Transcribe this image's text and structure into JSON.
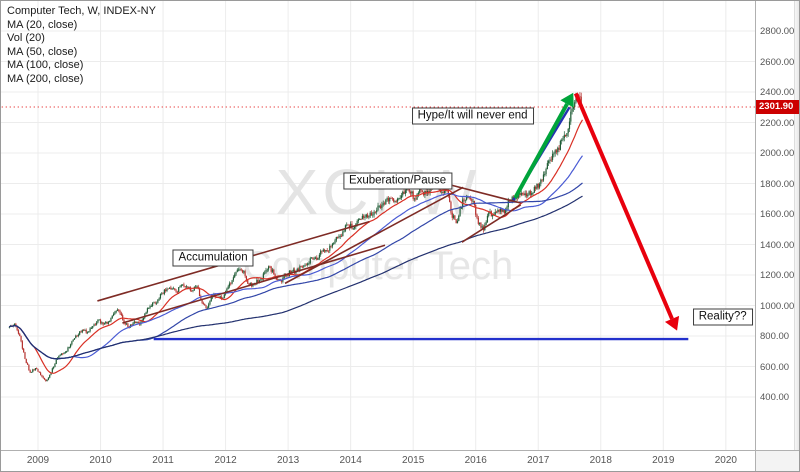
{
  "legend": {
    "items": [
      "Computer Tech, W, INDEX-NY",
      "MA (20, close)",
      "Vol (20)",
      "MA (50, close)",
      "MA (100, close)",
      "MA (200, close)"
    ]
  },
  "watermark": {
    "line1": "XCI W",
    "line2": "Computer Tech"
  },
  "annotations": [
    {
      "text": "Accumulation",
      "x": 2011.8,
      "price": 1310
    },
    {
      "text": "Exuberation/Pause",
      "x": 2014.75,
      "price": 1815
    },
    {
      "text": "Hype/It will never end",
      "x": 2015.95,
      "price": 2245
    },
    {
      "text": "Reality??",
      "x": 2019.95,
      "price": 925
    }
  ],
  "price_axis": {
    "labels": [
      {
        "value": 2800,
        "label": "2800.00"
      },
      {
        "value": 2600,
        "label": "2600.00"
      },
      {
        "value": 2400,
        "label": "2400.00"
      },
      {
        "value": 2200,
        "label": "2200.00"
      },
      {
        "value": 2000,
        "label": "2000.00"
      },
      {
        "value": 1800,
        "label": "1800.00"
      },
      {
        "value": 1600,
        "label": "1600.00"
      },
      {
        "value": 1400,
        "label": "1400.00"
      },
      {
        "value": 1200,
        "label": "1200.00"
      },
      {
        "value": 1000,
        "label": "1000.00"
      },
      {
        "value": 800,
        "label": "800.00"
      },
      {
        "value": 600,
        "label": "600.00"
      },
      {
        "value": 400,
        "label": "400.00"
      }
    ],
    "current": {
      "value": 2301.9,
      "label": "2301.90",
      "color": "#cc0000"
    }
  },
  "time_axis": {
    "labels": [
      {
        "value": 2009,
        "label": "2009"
      },
      {
        "value": 2010,
        "label": "2010"
      },
      {
        "value": 2011,
        "label": "2011"
      },
      {
        "value": 2012,
        "label": "2012"
      },
      {
        "value": 2013,
        "label": "2013"
      },
      {
        "value": 2014,
        "label": "2014"
      },
      {
        "value": 2015,
        "label": "2015"
      },
      {
        "value": 2016,
        "label": "2016"
      },
      {
        "value": 2017,
        "label": "2017"
      },
      {
        "value": 2018,
        "label": "2018"
      },
      {
        "value": 2019,
        "label": "2019"
      },
      {
        "value": 2020,
        "label": "2020"
      }
    ]
  },
  "chart_data": {
    "type": "candlestick",
    "title": "Computer Tech, W, INDEX-NY",
    "timeframe": "weekly",
    "x_range": [
      2008.45,
      2020.35
    ],
    "ylim": [
      400,
      2800
    ],
    "gridline_step": 200,
    "last_price": 2301.9,
    "candle_colors": {
      "up": "#1f5c35",
      "down": "#b5302d"
    },
    "monthly_closes": [
      [
        "2008-07",
        860
      ],
      [
        "2008-08",
        880
      ],
      [
        "2008-09",
        800
      ],
      [
        "2008-10",
        650
      ],
      [
        "2008-11",
        560
      ],
      [
        "2008-12",
        590
      ],
      [
        "2009-01",
        545
      ],
      [
        "2009-02",
        505
      ],
      [
        "2009-03",
        560
      ],
      [
        "2009-04",
        645
      ],
      [
        "2009-05",
        685
      ],
      [
        "2009-06",
        700
      ],
      [
        "2009-07",
        765
      ],
      [
        "2009-08",
        800
      ],
      [
        "2009-09",
        840
      ],
      [
        "2009-10",
        825
      ],
      [
        "2009-11",
        865
      ],
      [
        "2009-12",
        905
      ],
      [
        "2010-01",
        875
      ],
      [
        "2010-02",
        895
      ],
      [
        "2010-03",
        945
      ],
      [
        "2010-04",
        965
      ],
      [
        "2010-05",
        885
      ],
      [
        "2010-06",
        855
      ],
      [
        "2010-07",
        895
      ],
      [
        "2010-08",
        875
      ],
      [
        "2010-09",
        945
      ],
      [
        "2010-10",
        995
      ],
      [
        "2010-11",
        1015
      ],
      [
        "2010-12",
        1075
      ],
      [
        "2011-01",
        1095
      ],
      [
        "2011-02",
        1105
      ],
      [
        "2011-03",
        1090
      ],
      [
        "2011-04",
        1135
      ],
      [
        "2011-05",
        1125
      ],
      [
        "2011-06",
        1095
      ],
      [
        "2011-07",
        1125
      ],
      [
        "2011-08",
        1015
      ],
      [
        "2011-09",
        985
      ],
      [
        "2011-10",
        1065
      ],
      [
        "2011-11",
        1055
      ],
      [
        "2011-12",
        1050
      ],
      [
        "2012-01",
        1125
      ],
      [
        "2012-02",
        1185
      ],
      [
        "2012-03",
        1235
      ],
      [
        "2012-04",
        1225
      ],
      [
        "2012-05",
        1135
      ],
      [
        "2012-06",
        1145
      ],
      [
        "2012-07",
        1165
      ],
      [
        "2012-08",
        1215
      ],
      [
        "2012-09",
        1255
      ],
      [
        "2012-10",
        1185
      ],
      [
        "2012-11",
        1165
      ],
      [
        "2012-12",
        1195
      ],
      [
        "2013-01",
        1215
      ],
      [
        "2013-02",
        1225
      ],
      [
        "2013-03",
        1255
      ],
      [
        "2013-04",
        1265
      ],
      [
        "2013-05",
        1315
      ],
      [
        "2013-06",
        1300
      ],
      [
        "2013-07",
        1355
      ],
      [
        "2013-08",
        1360
      ],
      [
        "2013-09",
        1405
      ],
      [
        "2013-10",
        1445
      ],
      [
        "2013-11",
        1485
      ],
      [
        "2013-12",
        1525
      ],
      [
        "2014-01",
        1505
      ],
      [
        "2014-02",
        1565
      ],
      [
        "2014-03",
        1575
      ],
      [
        "2014-04",
        1585
      ],
      [
        "2014-05",
        1615
      ],
      [
        "2014-06",
        1655
      ],
      [
        "2014-07",
        1665
      ],
      [
        "2014-08",
        1705
      ],
      [
        "2014-09",
        1685
      ],
      [
        "2014-10",
        1705
      ],
      [
        "2014-11",
        1755
      ],
      [
        "2014-12",
        1735
      ],
      [
        "2015-01",
        1695
      ],
      [
        "2015-02",
        1755
      ],
      [
        "2015-03",
        1735
      ],
      [
        "2015-04",
        1765
      ],
      [
        "2015-05",
        1775
      ],
      [
        "2015-06",
        1745
      ],
      [
        "2015-07",
        1755
      ],
      [
        "2015-08",
        1575
      ],
      [
        "2015-09",
        1555
      ],
      [
        "2015-10",
        1695
      ],
      [
        "2015-11",
        1715
      ],
      [
        "2015-12",
        1685
      ],
      [
        "2016-01",
        1535
      ],
      [
        "2016-02",
        1495
      ],
      [
        "2016-03",
        1610
      ],
      [
        "2016-04",
        1595
      ],
      [
        "2016-05",
        1615
      ],
      [
        "2016-06",
        1605
      ],
      [
        "2016-07",
        1685
      ],
      [
        "2016-08",
        1705
      ],
      [
        "2016-09",
        1725
      ],
      [
        "2016-10",
        1735
      ],
      [
        "2016-11",
        1725
      ],
      [
        "2016-12",
        1765
      ],
      [
        "2017-01",
        1825
      ],
      [
        "2017-02",
        1895
      ],
      [
        "2017-03",
        1955
      ],
      [
        "2017-04",
        2005
      ],
      [
        "2017-05",
        2085
      ],
      [
        "2017-06",
        2130
      ],
      [
        "2017-07",
        2290
      ],
      [
        "2017-08",
        2380
      ],
      [
        "2017-09",
        2301.9
      ]
    ],
    "moving_averages": [
      {
        "name": "MA (20, close)",
        "period": 20,
        "color": "#d93025"
      },
      {
        "name": "MA (50, close)",
        "period": 50,
        "color": "#4a5bd4"
      },
      {
        "name": "MA (100, close)",
        "period": 100,
        "color": "#3246a8"
      },
      {
        "name": "MA (200, close)",
        "period": 200,
        "color": "#22306e"
      }
    ],
    "trendlines": [
      {
        "name": "accumulation-upper",
        "x1": 2009.95,
        "p1": 1030,
        "x2": 2014.3,
        "p2": 1550,
        "color": "#7e2b25",
        "width": 1.6
      },
      {
        "name": "accumulation-lower",
        "x1": 2010.35,
        "p1": 885,
        "x2": 2014.55,
        "p2": 1395,
        "color": "#7e2b25",
        "width": 1.6
      },
      {
        "name": "markup-trend",
        "x1": 2012.95,
        "p1": 1145,
        "x2": 2015.8,
        "p2": 1775,
        "color": "#7e2b25",
        "width": 1.6
      },
      {
        "name": "pennant-upper",
        "x1": 2015.6,
        "p1": 1790,
        "x2": 2016.72,
        "p2": 1672,
        "color": "#7e2b25",
        "width": 1.6
      },
      {
        "name": "pennant-lower",
        "x1": 2015.78,
        "p1": 1415,
        "x2": 2016.72,
        "p2": 1660,
        "color": "#7e2b25",
        "width": 1.6
      },
      {
        "name": "rally-line",
        "x1": 2016.6,
        "p1": 1690,
        "x2": 2017.5,
        "p2": 2300,
        "color": "#2433b0",
        "width": 2.4
      }
    ],
    "hlines": [
      {
        "name": "support-line",
        "x1": 2010.85,
        "x2": 2019.4,
        "price": 780,
        "color": "#2230cc",
        "width": 2.4,
        "dash": ""
      },
      {
        "name": "current-price-line",
        "x1": 2008.42,
        "x2": 2020.47,
        "price": 2301.9,
        "color": "#e10000",
        "width": 1,
        "dash": "1,3"
      }
    ],
    "arrows": [
      {
        "name": "hype-up",
        "x1": 2016.63,
        "p1": 1705,
        "x2": 2017.56,
        "p2": 2395,
        "color": "#00a43b",
        "width": 4
      },
      {
        "name": "crash-down",
        "x1": 2017.6,
        "p1": 2390,
        "x2": 2019.22,
        "p2": 835,
        "color": "#e8000d",
        "width": 4
      }
    ]
  }
}
